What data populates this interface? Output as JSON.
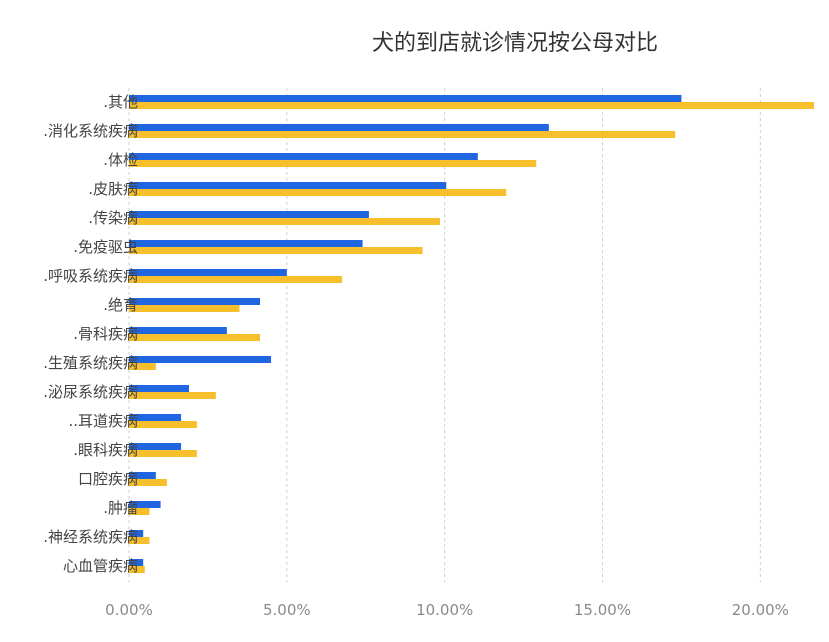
{
  "chart_data": {
    "type": "bar",
    "orientation": "horizontal",
    "title": "犬的到店就诊情况按公母对比",
    "categories": [
      ".其他",
      ".消化系统疾病",
      ".体检",
      ".皮肤病",
      ".传染病",
      ".免疫驱虫",
      ".呼吸系统疾病",
      ".绝育",
      ".骨科疾病",
      ".生殖系统疾病",
      ".泌尿系统疾病",
      "..耳道疾病",
      ".眼科疾病",
      "口腔疾病",
      ".肿瘤",
      ".神经系统疾病",
      "心血管疾病"
    ],
    "series": [
      {
        "color": "#1f66e0",
        "values": [
          17.5,
          13.3,
          11.05,
          10.05,
          7.6,
          7.4,
          5.0,
          4.15,
          3.1,
          4.5,
          1.9,
          1.65,
          1.65,
          0.85,
          1.0,
          0.45,
          0.45
        ]
      },
      {
        "color": "#f6bf2b",
        "values": [
          21.7,
          17.3,
          12.9,
          11.95,
          9.85,
          9.3,
          6.75,
          3.5,
          4.15,
          0.85,
          2.75,
          2.15,
          2.15,
          1.2,
          0.65,
          0.65,
          0.5
        ]
      }
    ],
    "xlim": [
      0,
      21.7
    ],
    "xticks": [
      0,
      5,
      10,
      15,
      20
    ],
    "xtick_labels": [
      "0.00%",
      "5.00%",
      "10.00%",
      "15.00%",
      "20.00%"
    ],
    "grid": "vertical dashed",
    "legend": "none"
  }
}
